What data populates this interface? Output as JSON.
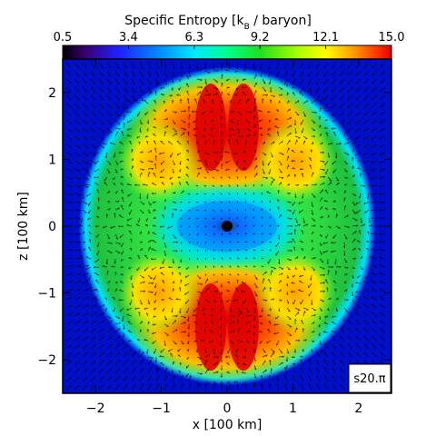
{
  "chart_data": {
    "type": "heatmap",
    "title": "Specific Entropy [k",
    "title_sub": "B",
    "title_tail": " / baryon]",
    "colorbar": {
      "min": 0.5,
      "max": 15.0,
      "tick_labels": [
        "0.5",
        "3.4",
        "6.3",
        "9.2",
        "12.1",
        "15.0"
      ],
      "tick_values": [
        0.5,
        3.4,
        6.3,
        9.2,
        12.1,
        15.0
      ],
      "colormap_stops": [
        "#000000",
        "#4b0082",
        "#0000ff",
        "#00bfff",
        "#00ffff",
        "#00ff80",
        "#00e000",
        "#7fff00",
        "#ffff00",
        "#ffa500",
        "#ff4500",
        "#e00000"
      ]
    },
    "xlabel": "x [100 km]",
    "ylabel": "z [100 km]",
    "xlim": [
      -2.5,
      2.5
    ],
    "ylim": [
      -2.5,
      2.5
    ],
    "x_ticks": [
      "-2",
      "-1",
      "0",
      "1",
      "2"
    ],
    "x_tick_values": [
      -2,
      -1,
      0,
      1,
      2
    ],
    "y_ticks": [
      "-2",
      "-1",
      "0",
      "1",
      "2"
    ],
    "y_tick_values": [
      -2,
      -1,
      0,
      1,
      2
    ],
    "annotation": "s20.π",
    "overlay": "velocity vector field",
    "colors": {
      "background_outside_shock": "#0000cd",
      "shock_edge": "#00ffff",
      "post_shock": "#32cd32",
      "high_entropy_plumes": "#e8201c",
      "center": "#00bfff",
      "core": "#000000"
    }
  }
}
